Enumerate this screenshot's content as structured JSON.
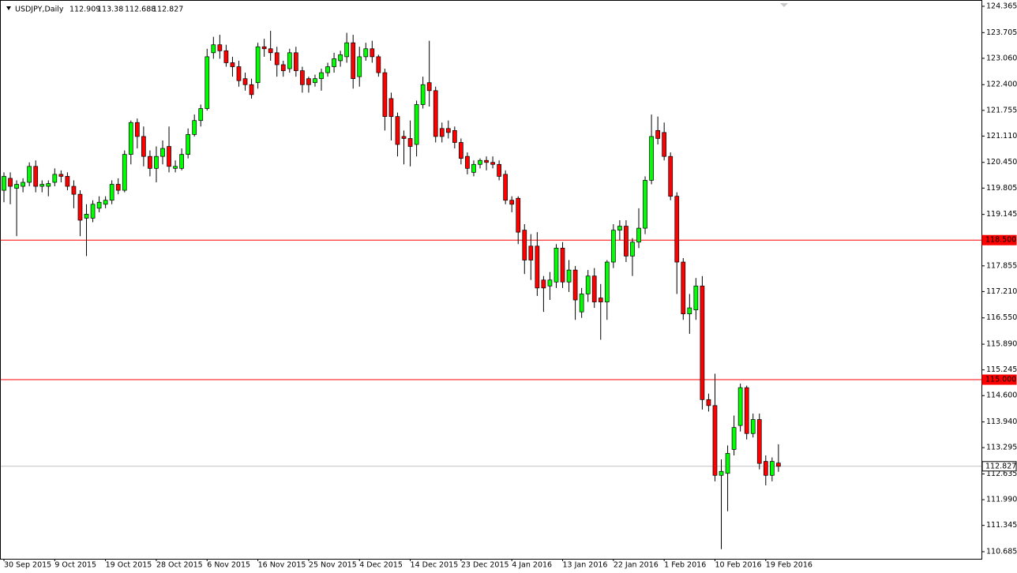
{
  "chart_data": {
    "type": "candlestick",
    "title": "USDJPY,Daily",
    "up_color": "#00ff00",
    "down_color": "#ff0000",
    "categories": [
      "30 Sep 2015",
      null,
      null,
      null,
      null,
      null,
      null,
      null,
      "9 Oct 2015",
      null,
      null,
      null,
      null,
      null,
      null,
      null,
      "19 Oct 2015",
      null,
      null,
      null,
      null,
      null,
      null,
      null,
      "28 Oct 2015",
      null,
      null,
      null,
      null,
      null,
      null,
      null,
      "6 Nov 2015",
      null,
      null,
      null,
      null,
      null,
      null,
      null,
      "16 Nov 2015",
      null,
      null,
      null,
      null,
      null,
      null,
      null,
      "25 Nov 2015",
      null,
      null,
      null,
      null,
      null,
      null,
      null,
      "4 Dec 2015",
      null,
      null,
      null,
      null,
      null,
      null,
      null,
      "14 Dec 2015",
      null,
      null,
      null,
      null,
      null,
      null,
      null,
      "23 Dec 2015",
      null,
      null,
      null,
      null,
      null,
      null,
      null,
      "4 Jan 2016",
      null,
      null,
      null,
      null,
      null,
      null,
      null,
      "13 Jan 2016",
      null,
      null,
      null,
      null,
      null,
      null,
      null,
      "22 Jan 2016",
      null,
      null,
      null,
      null,
      null,
      null,
      null,
      "1 Feb 2016",
      null,
      null,
      null,
      null,
      null,
      null,
      null,
      "10 Feb 2016",
      null,
      null,
      null,
      null,
      null,
      null,
      null,
      "19 Feb 2016",
      null,
      null
    ],
    "open": [
      119.75,
      120.05,
      119.8,
      119.85,
      119.95,
      120.35,
      119.85,
      119.85,
      119.95,
      120.15,
      120.1,
      119.85,
      119.65,
      119.05,
      119.05,
      119.3,
      119.4,
      119.5,
      119.9,
      119.75,
      120.65,
      121.45,
      121.1,
      120.6,
      120.3,
      120.6,
      120.85,
      120.3,
      120.3,
      120.65,
      121.15,
      121.5,
      121.8,
      123.2,
      123.4,
      123.25,
      122.95,
      122.85,
      122.55,
      122.4,
      122.45,
      123.35,
      123.3,
      123.2,
      122.9,
      122.8,
      123.2,
      122.75,
      122.55,
      122.45,
      122.55,
      122.7,
      122.85,
      123.0,
      123.1,
      123.45,
      122.6,
      123.1,
      123.3,
      123.1,
      122.7,
      122.05,
      121.6,
      121.1,
      121.05,
      120.9,
      121.9,
      122.45,
      122.25,
      121.3,
      121.3,
      121.25,
      120.95,
      120.6,
      120.2,
      120.4,
      120.5,
      120.45,
      120.4,
      120.15,
      119.5,
      119.55,
      118.75,
      118.35,
      118.35,
      117.5,
      117.35,
      117.45,
      118.3,
      117.45,
      117.75,
      116.7,
      117.15,
      117.6,
      117.05,
      116.95,
      117.95,
      118.75,
      118.85,
      118.1,
      118.45,
      118.8,
      120.0,
      121.25,
      121.2,
      120.6,
      119.6,
      117.95,
      116.65,
      116.75,
      117.35,
      114.5,
      114.35,
      112.6,
      112.65,
      113.25,
      113.85,
      114.8,
      113.65,
      114.0,
      112.95,
      112.6,
      112.909
    ],
    "high": [
      120.2,
      120.2,
      120.0,
      120.05,
      120.45,
      120.5,
      120.0,
      120.0,
      120.3,
      120.25,
      120.2,
      120.0,
      119.75,
      119.4,
      119.5,
      119.6,
      119.6,
      120.0,
      120.05,
      120.75,
      121.5,
      121.55,
      121.35,
      120.75,
      120.85,
      121.0,
      121.35,
      120.5,
      120.8,
      121.3,
      121.65,
      121.9,
      123.3,
      123.6,
      123.65,
      123.4,
      123.1,
      123.0,
      122.7,
      122.55,
      123.45,
      123.55,
      123.75,
      123.35,
      123.0,
      123.3,
      123.35,
      122.85,
      122.6,
      122.65,
      122.8,
      122.95,
      123.2,
      123.25,
      123.7,
      123.65,
      123.35,
      123.45,
      123.5,
      123.15,
      122.8,
      122.2,
      121.7,
      121.25,
      121.5,
      122.0,
      122.6,
      123.5,
      122.35,
      121.45,
      121.5,
      121.35,
      121.05,
      120.7,
      120.5,
      120.55,
      120.6,
      120.6,
      120.5,
      120.25,
      119.6,
      119.6,
      118.9,
      118.65,
      118.7,
      117.6,
      117.7,
      118.4,
      118.45,
      118.0,
      117.85,
      117.3,
      117.75,
      117.8,
      117.4,
      118.0,
      118.9,
      119.0,
      119.0,
      118.55,
      119.3,
      120.1,
      121.65,
      121.6,
      121.45,
      120.7,
      119.7,
      118.05,
      117.15,
      117.55,
      117.6,
      114.65,
      115.15,
      113.0,
      113.35,
      114.1,
      114.9,
      114.85,
      114.15,
      114.15,
      113.1,
      113.05,
      113.38
    ],
    "low": [
      119.45,
      119.4,
      118.6,
      119.7,
      119.85,
      119.7,
      119.7,
      119.6,
      119.85,
      119.95,
      119.75,
      119.3,
      118.6,
      118.1,
      118.95,
      119.2,
      119.3,
      119.4,
      119.65,
      119.7,
      120.4,
      120.8,
      120.35,
      120.1,
      119.95,
      120.4,
      120.2,
      120.2,
      120.25,
      120.55,
      121.1,
      121.35,
      121.75,
      123.05,
      123.05,
      122.85,
      122.6,
      122.35,
      122.25,
      122.05,
      122.3,
      123.1,
      123.0,
      122.6,
      122.6,
      122.7,
      122.6,
      122.2,
      122.2,
      122.35,
      122.25,
      122.6,
      122.7,
      122.85,
      122.95,
      122.3,
      122.35,
      123.0,
      122.95,
      122.6,
      121.25,
      121.0,
      120.6,
      120.4,
      120.35,
      120.6,
      121.8,
      121.85,
      120.95,
      120.95,
      121.05,
      120.8,
      120.4,
      120.15,
      120.1,
      120.3,
      120.25,
      120.3,
      120.0,
      119.4,
      119.2,
      118.4,
      117.65,
      117.5,
      117.1,
      116.7,
      117.0,
      117.3,
      117.3,
      117.2,
      116.5,
      116.55,
      116.95,
      116.8,
      116.0,
      116.5,
      117.8,
      118.5,
      117.95,
      117.6,
      118.3,
      118.65,
      119.9,
      120.9,
      120.5,
      119.5,
      117.15,
      116.5,
      116.15,
      116.5,
      114.25,
      114.2,
      112.45,
      110.75,
      111.7,
      113.1,
      113.7,
      113.5,
      113.55,
      112.75,
      112.35,
      112.45,
      112.688
    ],
    "close": [
      120.1,
      119.85,
      119.9,
      119.95,
      120.35,
      119.85,
      119.9,
      119.92,
      120.15,
      120.1,
      119.85,
      119.65,
      119.0,
      119.15,
      119.4,
      119.45,
      119.5,
      119.9,
      119.75,
      120.65,
      121.45,
      121.1,
      120.6,
      120.3,
      120.6,
      120.8,
      120.35,
      120.35,
      120.65,
      121.15,
      121.5,
      121.8,
      123.1,
      123.4,
      123.25,
      122.95,
      122.85,
      122.5,
      122.4,
      122.15,
      123.35,
      123.3,
      123.2,
      122.9,
      122.75,
      123.2,
      122.75,
      122.4,
      122.4,
      122.55,
      122.7,
      122.85,
      123.05,
      123.15,
      123.45,
      122.55,
      123.1,
      123.3,
      123.1,
      122.7,
      121.6,
      121.6,
      120.9,
      121.05,
      120.85,
      121.9,
      122.4,
      122.25,
      121.1,
      121.1,
      121.2,
      120.95,
      120.55,
      120.3,
      120.4,
      120.5,
      120.45,
      120.4,
      120.1,
      119.5,
      119.4,
      118.7,
      118.0,
      118.0,
      117.3,
      117.3,
      117.5,
      118.3,
      117.45,
      117.75,
      117.0,
      117.15,
      117.6,
      116.95,
      116.95,
      117.95,
      118.75,
      118.85,
      118.1,
      118.45,
      118.8,
      120.0,
      121.1,
      121.05,
      120.6,
      119.6,
      117.95,
      116.65,
      116.8,
      117.35,
      114.5,
      114.35,
      112.6,
      112.7,
      113.15,
      113.8,
      114.8,
      113.65,
      114.0,
      112.9,
      112.6,
      112.95,
      112.827
    ],
    "ylim": [
      110.507,
      124.523
    ],
    "yticks": [
      124.365,
      123.705,
      {
        "value": 123.06,
        "label": "123.060"
      },
      {
        "value": 122.4,
        "label": "122.400"
      },
      121.755,
      {
        "value": 121.11,
        "label": "121.110"
      },
      {
        "value": 120.45,
        "label": "120.450"
      },
      119.805,
      119.145,
      117.855,
      {
        "value": 117.21,
        "label": "117.210"
      },
      {
        "value": 116.55,
        "label": "116.550"
      },
      {
        "value": 115.89,
        "label": "115.890"
      },
      115.245,
      {
        "value": 114.6,
        "label": "114.600"
      },
      {
        "value": 113.94,
        "label": "113.940"
      },
      113.295,
      112.635,
      {
        "value": 111.99,
        "label": "111.990"
      },
      111.345,
      110.685
    ],
    "hlines": [
      {
        "value": 118.5,
        "label": "118.500",
        "color": "#ff0000"
      },
      {
        "value": 115.0,
        "label": "115.000",
        "color": "#ff0000"
      },
      {
        "value": 112.827,
        "label": "112.827",
        "color": "#c0c0c0"
      }
    ]
  }
}
